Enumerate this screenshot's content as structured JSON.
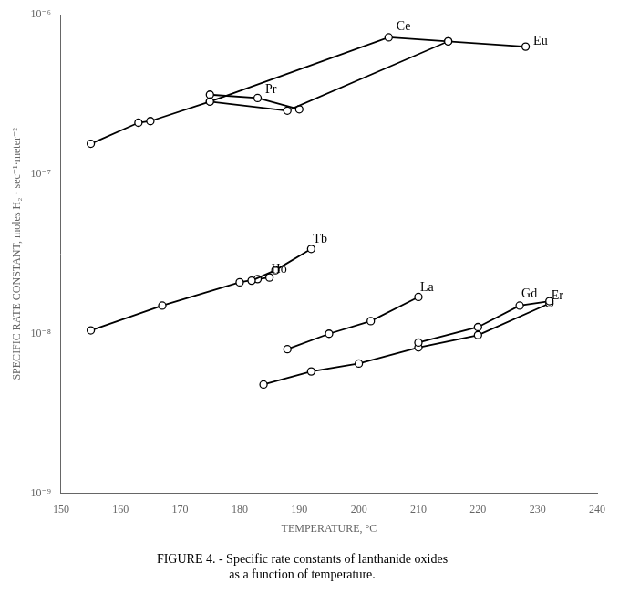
{
  "chart_data": {
    "type": "line",
    "title": "FIGURE 4. - Specific rate constants of lanthanide oxides\nas a function of temperature.",
    "xlabel": "TEMPERATURE, °C",
    "ylabel": "SPECIFIC RATE CONSTANT, moles H₂ · sec⁻¹·meter⁻²",
    "log": "y",
    "grid": false,
    "marker": "circle",
    "xlim": [
      150,
      240
    ],
    "ylim": [
      1e-09,
      1e-06
    ],
    "xticks": [
      150,
      160,
      170,
      180,
      190,
      200,
      210,
      220,
      230,
      240
    ],
    "yticks": [
      {
        "value": 1e-09,
        "label": "10⁻⁹"
      },
      {
        "value": 1e-08,
        "label": "10⁻⁸"
      },
      {
        "value": 1e-07,
        "label": "10⁻⁷"
      },
      {
        "value": 1e-06,
        "label": "10⁻⁶"
      }
    ],
    "series": [
      {
        "name": "Ce",
        "color": "#000000",
        "x": [
          155,
          163,
          165,
          175,
          205,
          215
        ],
        "values": [
          1.55e-07,
          2.1e-07,
          2.15e-07,
          2.85e-07,
          7.2e-07,
          6.8e-07
        ]
      },
      {
        "name": "Eu",
        "color": "#000000",
        "x": [
          175,
          188,
          215,
          228
        ],
        "values": [
          2.85e-07,
          2.5e-07,
          6.8e-07,
          6.3e-07
        ]
      },
      {
        "name": "Pr",
        "color": "#000000",
        "x": [
          175,
          183,
          190
        ],
        "values": [
          3.15e-07,
          3e-07,
          2.55e-07
        ]
      },
      {
        "name": "Tb",
        "color": "#000000",
        "x": [
          182,
          186,
          192
        ],
        "values": [
          2.15e-08,
          2.5e-08,
          3.4e-08
        ]
      },
      {
        "name": "Ho",
        "color": "#000000",
        "x": [
          155,
          167,
          180,
          183,
          185
        ],
        "values": [
          1.05e-08,
          1.5e-08,
          2.1e-08,
          2.2e-08,
          2.25e-08
        ]
      },
      {
        "name": "La",
        "color": "#000000",
        "x": [
          188,
          195,
          202,
          210
        ],
        "values": [
          8e-09,
          1e-08,
          1.2e-08,
          1.7e-08
        ]
      },
      {
        "name": "Gd",
        "color": "#000000",
        "x": [
          210,
          220,
          227,
          232
        ],
        "values": [
          8.8e-09,
          1.1e-08,
          1.5e-08,
          1.6e-08
        ]
      },
      {
        "name": "Er",
        "color": "#000000",
        "x": [
          184,
          192,
          200,
          210,
          220,
          232
        ],
        "values": [
          4.8e-09,
          5.8e-09,
          6.5e-09,
          8.2e-09,
          9.8e-09,
          1.55e-08
        ]
      }
    ],
    "annotations": [
      {
        "text": "Ce",
        "x": 206,
        "y": 7.8e-07
      },
      {
        "text": "Eu",
        "x": 229,
        "y": 6.3e-07
      },
      {
        "text": "Pr",
        "x": 184,
        "y": 3.15e-07
      },
      {
        "text": "Tb",
        "x": 192,
        "y": 3.6e-08
      },
      {
        "text": "Ho",
        "x": 185,
        "y": 2.35e-08
      },
      {
        "text": "La",
        "x": 210,
        "y": 1.8e-08
      },
      {
        "text": "Gd",
        "x": 227,
        "y": 1.65e-08
      },
      {
        "text": "Er",
        "x": 232,
        "y": 1.6e-08
      }
    ]
  }
}
